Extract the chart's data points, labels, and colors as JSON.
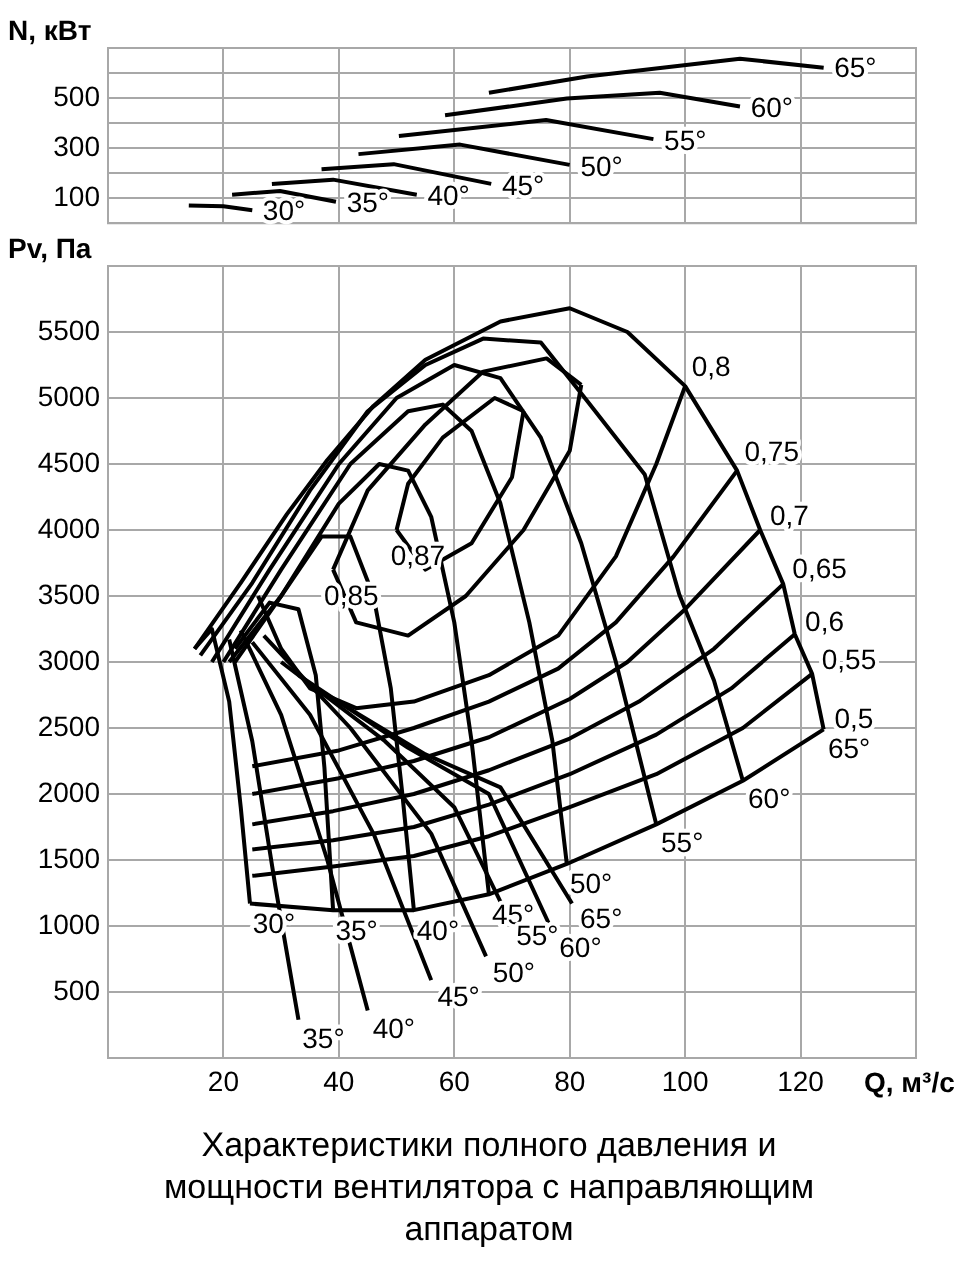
{
  "chart_data": [
    {
      "type": "line",
      "ylabel": "N, кВт",
      "xlim": [
        0,
        140
      ],
      "xticks": [
        20,
        40,
        60,
        80,
        100,
        120
      ],
      "ylim": [
        0,
        700
      ],
      "yticks": [
        100,
        {
          "value": 200,
          "label": null
        },
        300,
        {
          "value": 400,
          "label": null
        },
        500,
        {
          "value": 600,
          "label": null
        }
      ],
      "grid": true,
      "tick_labels": "y",
      "marker": "none",
      "line_style": "solid",
      "series": [
        {
          "name": "30°",
          "color": "#000000",
          "x": [
            14,
            20,
            25
          ],
          "values": [
            71,
            68,
            52
          ]
        },
        {
          "name": "35°",
          "color": "#000000",
          "x": [
            21.5,
            29.8,
            39.5
          ],
          "values": [
            114,
            129,
            86
          ]
        },
        {
          "name": "40°",
          "color": "#000000",
          "x": [
            28.4,
            39,
            53.5
          ],
          "values": [
            157,
            174,
            114
          ]
        },
        {
          "name": "45°",
          "color": "#000000",
          "x": [
            37,
            49.5,
            66.4
          ],
          "values": [
            216,
            236,
            157
          ]
        },
        {
          "name": "50°",
          "color": "#000000",
          "x": [
            43.4,
            61,
            80
          ],
          "values": [
            276,
            314,
            233
          ]
        },
        {
          "name": "55°",
          "color": "#000000",
          "x": [
            50.4,
            75.9,
            94.5
          ],
          "values": [
            348,
            412,
            336
          ]
        },
        {
          "name": "60°",
          "color": "#000000",
          "x": [
            58.4,
            79.5,
            95.6,
            109.5
          ],
          "values": [
            431,
            498,
            521,
            466
          ]
        },
        {
          "name": "65°",
          "color": "#000000",
          "x": [
            66,
            83,
            109.5,
            124
          ],
          "values": [
            521,
            586,
            657,
            621
          ]
        }
      ]
    },
    {
      "type": "line",
      "title": "Характеристики полного давления и мощности вентилятора с направляющим аппаратом",
      "ylabel": "Pv, Па",
      "xlabel": "Q, м³/с",
      "xlim": [
        0,
        140
      ],
      "xticks": [
        20,
        40,
        60,
        80,
        100,
        120
      ],
      "ylim": [
        0,
        6000
      ],
      "yticks": [
        500,
        1000,
        1500,
        2000,
        2500,
        3000,
        3500,
        4000,
        4500,
        5000,
        5500
      ],
      "grid": true,
      "marker": "none",
      "line_style": "solid",
      "series": [
        {
          "name": "65°",
          "color": "#000000",
          "x": [
            15,
            23,
            31,
            38,
            46,
            55,
            68,
            80,
            90,
            100,
            109,
            113,
            117,
            119,
            122,
            124
          ],
          "values": [
            3100,
            3600,
            4120,
            4530,
            4940,
            5290,
            5580,
            5680,
            5500,
            5090,
            4450,
            4000,
            3590,
            3210,
            2910,
            2490
          ]
        },
        {
          "name": "60°",
          "color": "#000000",
          "x": [
            16,
            25,
            35,
            45,
            55,
            65,
            75,
            83,
            93,
            99,
            105,
            110
          ],
          "values": [
            3050,
            3600,
            4300,
            4900,
            5250,
            5450,
            5420,
            4980,
            4420,
            3510,
            2860,
            2100
          ]
        },
        {
          "name": "55°",
          "color": "#000000",
          "x": [
            18,
            28,
            40,
            50,
            60,
            68,
            75,
            82,
            88,
            95
          ],
          "values": [
            3000,
            3700,
            4500,
            5000,
            5250,
            5150,
            4700,
            3900,
            3000,
            1770
          ]
        },
        {
          "name": "50°",
          "color": "#000000",
          "x": [
            20,
            30,
            42,
            52,
            58,
            63,
            68,
            73,
            77,
            79.5
          ],
          "values": [
            3000,
            3700,
            4500,
            4900,
            4950,
            4750,
            4200,
            3300,
            2400,
            1470
          ]
        },
        {
          "name": "45°",
          "color": "#000000",
          "x": [
            21,
            30,
            40,
            47,
            52,
            56,
            60,
            63,
            66
          ],
          "values": [
            3000,
            3500,
            4200,
            4500,
            4450,
            4100,
            3300,
            2400,
            1240
          ]
        },
        {
          "name": "40°",
          "color": "#000000",
          "x": [
            22,
            30,
            37,
            42,
            46,
            49,
            51,
            53
          ],
          "values": [
            3000,
            3500,
            3950,
            3950,
            3500,
            2800,
            2000,
            1120
          ]
        },
        {
          "name": "35°",
          "color": "#000000",
          "x": [
            22,
            28,
            33,
            36,
            37.5,
            39
          ],
          "values": [
            3100,
            3450,
            3400,
            2900,
            2200,
            1120
          ]
        },
        {
          "name": "30°",
          "color": "#000000",
          "x": [
            15,
            18,
            21,
            23,
            24.6
          ],
          "values": [
            3100,
            3250,
            2700,
            1900,
            1170
          ]
        },
        {
          "name": "0,5",
          "color": "#000000",
          "x": [
            24.6,
            39,
            53,
            66,
            79.5,
            95,
            110,
            124
          ],
          "values": [
            1170,
            1120,
            1120,
            1240,
            1470,
            1770,
            2100,
            2490
          ]
        },
        {
          "name": "0,55",
          "color": "#000000",
          "x": [
            25,
            39,
            53,
            66,
            80,
            95,
            110,
            122
          ],
          "values": [
            1380,
            1450,
            1530,
            1680,
            1900,
            2150,
            2500,
            2910
          ]
        },
        {
          "name": "0,6",
          "color": "#000000",
          "x": [
            25,
            39,
            53,
            66,
            80,
            95,
            108,
            119
          ],
          "values": [
            1580,
            1650,
            1750,
            1920,
            2150,
            2450,
            2800,
            3210
          ]
        },
        {
          "name": "0,65",
          "color": "#000000",
          "x": [
            25,
            39,
            53,
            66,
            80,
            92,
            105,
            117
          ],
          "values": [
            1770,
            1870,
            2000,
            2180,
            2420,
            2700,
            3100,
            3590
          ]
        },
        {
          "name": "0,7",
          "color": "#000000",
          "x": [
            25,
            40,
            53,
            66,
            80,
            90,
            100,
            113
          ],
          "values": [
            2000,
            2120,
            2250,
            2430,
            2720,
            3000,
            3400,
            4000
          ]
        },
        {
          "name": "0,75",
          "color": "#000000",
          "x": [
            25,
            40,
            53,
            66,
            78,
            88,
            98,
            109
          ],
          "values": [
            2210,
            2330,
            2500,
            2700,
            2950,
            3300,
            3800,
            4450
          ]
        },
        {
          "name": "0,8",
          "color": "#000000",
          "x": [
            26,
            30,
            35,
            43,
            53,
            66,
            78,
            88,
            95,
            100
          ],
          "values": [
            3500,
            3100,
            2800,
            2650,
            2700,
            2900,
            3200,
            3800,
            4500,
            5090
          ]
        },
        {
          "color": "#000000",
          "x": [
            39,
            43,
            52,
            62,
            72,
            80,
            82
          ],
          "values": [
            3700,
            3300,
            3200,
            3500,
            4000,
            4600,
            5100
          ]
        },
        {
          "name": "0,85",
          "color": "#000000",
          "x": [
            82,
            76,
            65,
            55,
            45,
            39
          ],
          "values": [
            5100,
            5300,
            5200,
            4800,
            4300,
            3700
          ]
        },
        {
          "color": "#000000",
          "x": [
            50,
            55,
            63,
            70,
            72
          ],
          "values": [
            4000,
            3700,
            3900,
            4400,
            4900
          ]
        },
        {
          "name": "0,87",
          "color": "#000000",
          "x": [
            72,
            67,
            58,
            52,
            50
          ],
          "values": [
            4900,
            5000,
            4700,
            4350,
            4000
          ]
        },
        {
          "name": "35°",
          "color": "#000000",
          "x": [
            21,
            25,
            29,
            33
          ],
          "values": [
            3170,
            2400,
            1300,
            290
          ]
        },
        {
          "name": "40°",
          "color": "#000000",
          "x": [
            23,
            30,
            38,
            45
          ],
          "values": [
            3240,
            2600,
            1500,
            360
          ]
        },
        {
          "name": "45°",
          "color": "#000000",
          "x": [
            25,
            35,
            46,
            56
          ],
          "values": [
            3150,
            2600,
            1700,
            590
          ]
        },
        {
          "name": "50°",
          "color": "#000000",
          "x": [
            27,
            42,
            56,
            65.5
          ],
          "values": [
            3200,
            2500,
            1700,
            770
          ]
        },
        {
          "name": "55°",
          "color": "#000000",
          "x": [
            30,
            48,
            60,
            69.5
          ],
          "values": [
            3000,
            2400,
            1900,
            1050
          ]
        },
        {
          "name": "60°",
          "color": "#000000",
          "x": [
            33,
            52,
            66,
            77
          ],
          "values": [
            2900,
            2350,
            2000,
            960
          ]
        },
        {
          "name": "65°",
          "color": "#000000",
          "x": [
            36,
            55,
            68,
            80.4
          ],
          "values": [
            2800,
            2300,
            2050,
            1170
          ]
        }
      ]
    }
  ]
}
